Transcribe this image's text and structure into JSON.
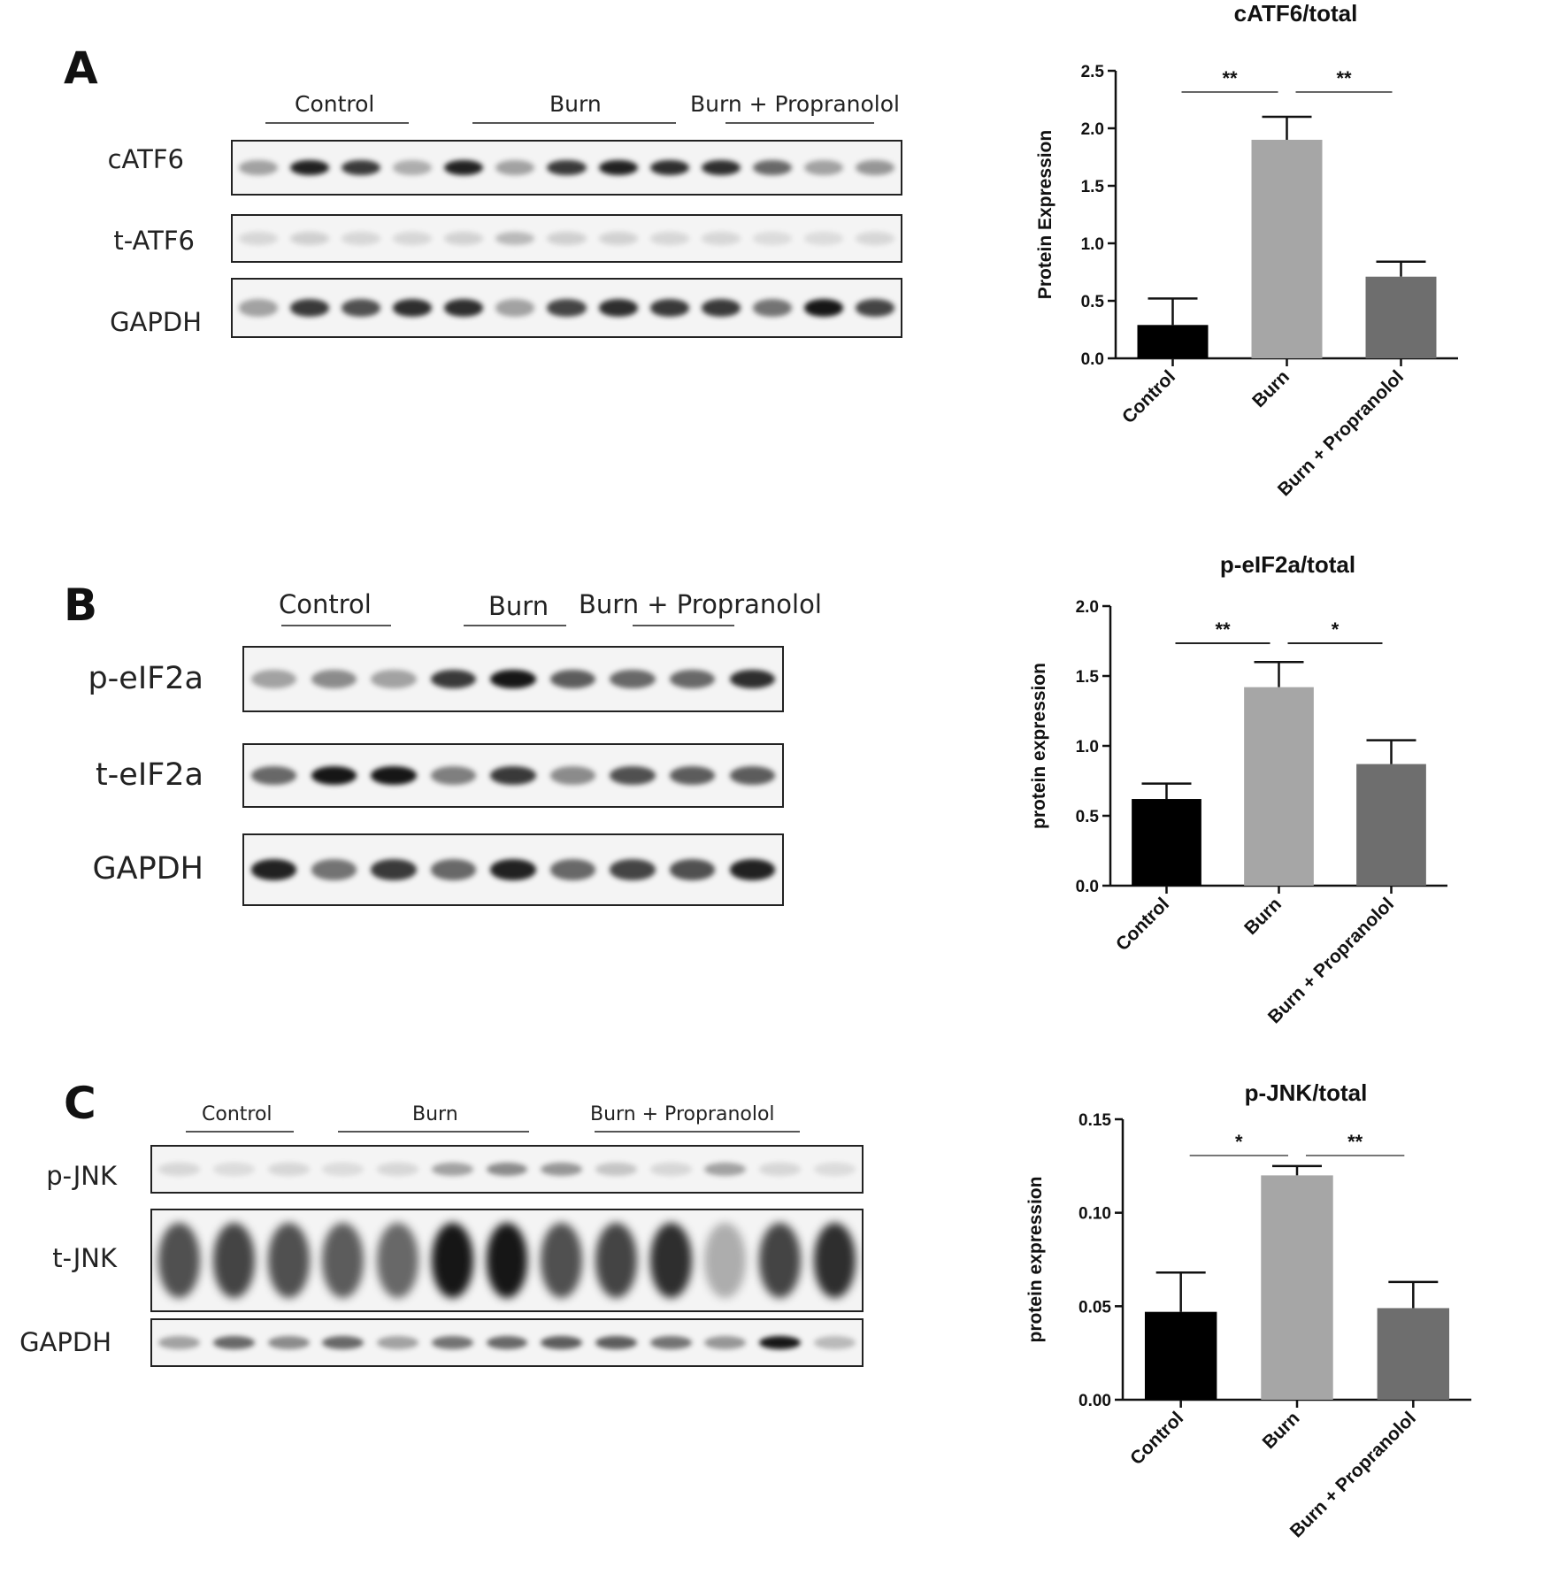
{
  "panels": [
    {
      "letter": "A",
      "groups": [
        "Control",
        "Burn",
        "Burn + Propranolol"
      ],
      "rows": [
        "cATF6",
        "t-ATF6",
        "GAPDH"
      ]
    },
    {
      "letter": "B",
      "groups": [
        "Control",
        "Burn",
        "Burn + Propranolol"
      ],
      "rows": [
        "p-eIF2a",
        "t-eIF2a",
        "GAPDH"
      ]
    },
    {
      "letter": "C",
      "groups": [
        "Control",
        "Burn",
        "Burn + Propranolol"
      ],
      "rows": [
        "p-JNK",
        "t-JNK",
        "GAPDH"
      ]
    }
  ],
  "chart_data": [
    {
      "type": "bar",
      "title": "cATF6/total",
      "ylabel": "Protein Expression",
      "xlabel": "",
      "categories": [
        "Control",
        "Burn",
        "Burn + Propranolol"
      ],
      "values": [
        0.29,
        1.9,
        0.71
      ],
      "errors": [
        0.23,
        0.2,
        0.13
      ],
      "colors": [
        "#000000",
        "#a6a6a6",
        "#6e6e6e"
      ],
      "ylim": [
        0,
        2.5
      ],
      "yticks": [
        "0.0",
        "0.5",
        "1.0",
        "1.5",
        "2.0",
        "2.5"
      ],
      "significance": [
        {
          "from": "Control",
          "to": "Burn",
          "label": "**"
        },
        {
          "from": "Burn",
          "to": "Burn + Propranolol",
          "label": "**"
        }
      ]
    },
    {
      "type": "bar",
      "title": "p-eIF2a/total",
      "ylabel": "protein expression",
      "xlabel": "",
      "categories": [
        "Control",
        "Burn",
        "Burn + Propranolol"
      ],
      "values": [
        0.62,
        1.42,
        0.87
      ],
      "errors": [
        0.11,
        0.18,
        0.17
      ],
      "colors": [
        "#000000",
        "#a6a6a6",
        "#6e6e6e"
      ],
      "ylim": [
        0,
        2.0
      ],
      "yticks": [
        "0.0",
        "0.5",
        "1.0",
        "1.5",
        "2.0"
      ],
      "significance": [
        {
          "from": "Control",
          "to": "Burn",
          "label": "**"
        },
        {
          "from": "Burn",
          "to": "Burn + Propranolol",
          "label": "*"
        }
      ]
    },
    {
      "type": "bar",
      "title": "p-JNK/total",
      "ylabel": "protein expression",
      "xlabel": "",
      "categories": [
        "Control",
        "Burn",
        "Burn + Propranolol"
      ],
      "values": [
        0.047,
        0.12,
        0.049
      ],
      "errors": [
        0.021,
        0.005,
        0.014
      ],
      "colors": [
        "#000000",
        "#a6a6a6",
        "#6e6e6e"
      ],
      "ylim": [
        0,
        0.15
      ],
      "yticks": [
        "0.00",
        "0.05",
        "0.10",
        "0.15"
      ],
      "significance": [
        {
          "from": "Control",
          "to": "Burn",
          "label": "*"
        },
        {
          "from": "Burn",
          "to": "Burn + Propranolol",
          "label": "**"
        }
      ]
    }
  ]
}
